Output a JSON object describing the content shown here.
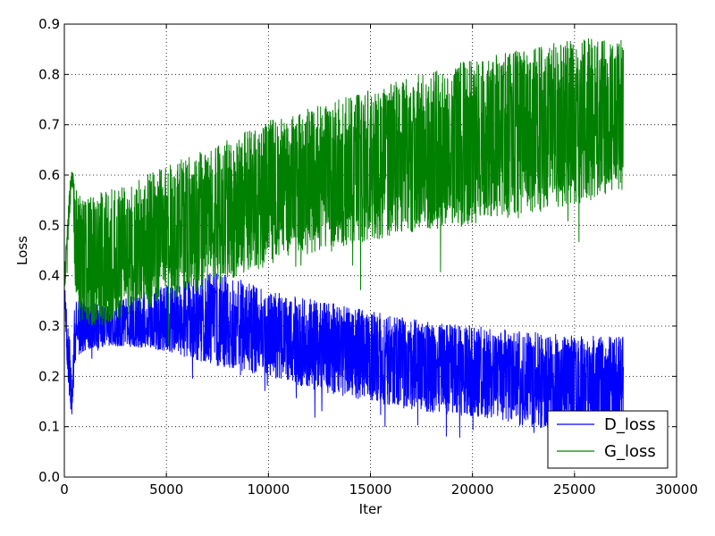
{
  "chart_data": {
    "type": "line",
    "title": "",
    "xlabel": "Iter",
    "ylabel": "Loss",
    "xlim": [
      0,
      30000
    ],
    "ylim": [
      0.0,
      0.9
    ],
    "xticks": [
      "0",
      "5000",
      "10000",
      "15000",
      "20000",
      "25000",
      "30000"
    ],
    "yticks": [
      "0.0",
      "0.1",
      "0.2",
      "0.3",
      "0.4",
      "0.5",
      "0.6",
      "0.7",
      "0.8",
      "0.9"
    ],
    "grid": true,
    "legend_position": "bottom-right",
    "series": [
      {
        "name": "D_loss",
        "color": "#0000ff",
        "x": [
          0,
          150,
          300,
          400,
          500,
          700,
          1000,
          2000,
          3000,
          5000,
          7500,
          10000,
          12500,
          15000,
          17500,
          20000,
          22500,
          25000,
          27400
        ],
        "y_mean": [
          0.38,
          0.25,
          0.18,
          0.16,
          0.28,
          0.3,
          0.3,
          0.3,
          0.3,
          0.3,
          0.3,
          0.27,
          0.25,
          0.23,
          0.21,
          0.2,
          0.19,
          0.18,
          0.18
        ],
        "y_low": [
          0.36,
          0.2,
          0.13,
          0.12,
          0.22,
          0.24,
          0.25,
          0.26,
          0.26,
          0.25,
          0.22,
          0.2,
          0.17,
          0.15,
          0.13,
          0.12,
          0.1,
          0.09,
          0.09
        ],
        "y_high": [
          0.4,
          0.33,
          0.26,
          0.2,
          0.34,
          0.36,
          0.35,
          0.34,
          0.36,
          0.38,
          0.41,
          0.37,
          0.35,
          0.33,
          0.31,
          0.3,
          0.29,
          0.28,
          0.28
        ]
      },
      {
        "name": "G_loss",
        "color": "#008000",
        "x": [
          0,
          150,
          300,
          400,
          500,
          700,
          1000,
          2000,
          3000,
          5000,
          7500,
          10000,
          12500,
          15000,
          17500,
          20000,
          22500,
          25000,
          27400
        ],
        "y_mean": [
          0.38,
          0.48,
          0.58,
          0.59,
          0.52,
          0.45,
          0.43,
          0.43,
          0.45,
          0.47,
          0.52,
          0.56,
          0.6,
          0.62,
          0.64,
          0.66,
          0.68,
          0.7,
          0.71
        ],
        "y_low": [
          0.36,
          0.44,
          0.54,
          0.57,
          0.4,
          0.3,
          0.3,
          0.3,
          0.32,
          0.35,
          0.38,
          0.42,
          0.45,
          0.47,
          0.49,
          0.5,
          0.52,
          0.54,
          0.57
        ],
        "y_high": [
          0.4,
          0.52,
          0.6,
          0.61,
          0.58,
          0.56,
          0.55,
          0.57,
          0.58,
          0.62,
          0.66,
          0.71,
          0.74,
          0.77,
          0.8,
          0.83,
          0.85,
          0.87,
          0.88
        ]
      }
    ]
  }
}
